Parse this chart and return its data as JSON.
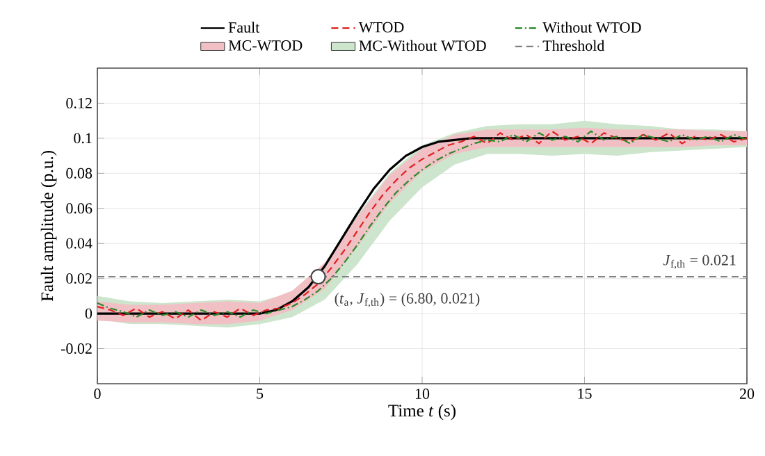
{
  "chart_data": {
    "type": "line",
    "xlabel": "Time *t* (s)",
    "ylabel": "Fault amplitude (p.u.)",
    "xlim": [
      0,
      20
    ],
    "ylim": [
      -0.04,
      0.14
    ],
    "xticks": [
      0,
      5,
      10,
      15,
      20
    ],
    "yticks": [
      -0.02,
      0,
      0.02,
      0.04,
      0.06,
      0.08,
      0.1,
      0.12
    ],
    "grid": true,
    "legend": "top",
    "series": [
      {
        "name": "Fault",
        "color": "#000000",
        "line_style": "solid",
        "x": [
          0,
          0.5,
          1,
          1.5,
          2,
          2.5,
          3,
          3.5,
          4,
          4.5,
          5,
          5.5,
          6,
          6.5,
          7,
          7.5,
          8,
          8.5,
          9,
          9.5,
          10,
          10.5,
          11,
          11.5,
          12,
          12.5,
          13,
          14,
          15,
          16,
          17,
          18,
          19,
          20
        ],
        "values": [
          0,
          0,
          0,
          0,
          0,
          0,
          0,
          0,
          0,
          0,
          0,
          0.002,
          0.007,
          0.015,
          0.027,
          0.042,
          0.057,
          0.071,
          0.082,
          0.09,
          0.095,
          0.098,
          0.099,
          0.1,
          0.1,
          0.1,
          0.1,
          0.1,
          0.1,
          0.1,
          0.1,
          0.1,
          0.1,
          0.1
        ]
      },
      {
        "name": "WTOD",
        "color": "#e02020",
        "line_style": "dashed",
        "x": [
          0,
          0.4,
          0.8,
          1.2,
          1.6,
          2,
          2.4,
          2.8,
          3.2,
          3.6,
          4,
          4.4,
          4.8,
          5.2,
          5.6,
          6,
          6.4,
          6.8,
          7.2,
          7.6,
          8,
          8.4,
          8.8,
          9.2,
          9.6,
          10,
          10.4,
          10.8,
          11.2,
          11.6,
          12,
          12.4,
          12.8,
          13.2,
          13.6,
          14,
          14.4,
          14.8,
          15.2,
          15.6,
          16,
          16.4,
          16.8,
          17.2,
          17.6,
          18,
          18.4,
          18.8,
          19.2,
          19.6,
          20
        ],
        "values": [
          0.004,
          0.002,
          -0.001,
          0.003,
          -0.002,
          0.001,
          -0.003,
          0.002,
          -0.004,
          0.001,
          -0.002,
          0.003,
          -0.001,
          0.002,
          0.003,
          0.006,
          0.011,
          0.017,
          0.026,
          0.036,
          0.047,
          0.058,
          0.068,
          0.076,
          0.083,
          0.088,
          0.092,
          0.096,
          0.098,
          0.101,
          0.097,
          0.103,
          0.099,
          0.102,
          0.097,
          0.104,
          0.099,
          0.101,
          0.097,
          0.103,
          0.1,
          0.098,
          0.102,
          0.099,
          0.103,
          0.097,
          0.101,
          0.099,
          0.102,
          0.098,
          0.1
        ]
      },
      {
        "name": "Without WTOD",
        "color": "#2a8a2a",
        "line_style": "dashdot",
        "x": [
          0,
          0.4,
          0.8,
          1.2,
          1.6,
          2,
          2.4,
          2.8,
          3.2,
          3.6,
          4,
          4.4,
          4.8,
          5.2,
          5.6,
          6,
          6.4,
          6.8,
          7.2,
          7.6,
          8,
          8.4,
          8.8,
          9.2,
          9.6,
          10,
          10.4,
          10.8,
          11.2,
          11.6,
          12,
          12.4,
          12.8,
          13.2,
          13.6,
          14,
          14.4,
          14.8,
          15.2,
          15.6,
          16,
          16.4,
          16.8,
          17.2,
          17.6,
          18,
          18.4,
          18.8,
          19.2,
          19.6,
          20
        ],
        "values": [
          0.006,
          0.003,
          0.001,
          -0.002,
          0.002,
          -0.001,
          0.001,
          -0.002,
          0.002,
          -0.001,
          0.001,
          -0.002,
          0.002,
          0,
          0.002,
          0.004,
          0.008,
          0.013,
          0.02,
          0.029,
          0.039,
          0.05,
          0.06,
          0.069,
          0.076,
          0.082,
          0.087,
          0.091,
          0.094,
          0.097,
          0.099,
          0.098,
          0.102,
          0.098,
          0.103,
          0.099,
          0.101,
          0.098,
          0.104,
          0.099,
          0.101,
          0.097,
          0.102,
          0.1,
          0.098,
          0.102,
          0.099,
          0.101,
          0.098,
          0.102,
          0.099
        ]
      },
      {
        "name": "MC-WTOD",
        "color": "#f0c0c4",
        "values": [
          null,
          null,
          null,
          null,
          null,
          null,
          null,
          null,
          null,
          null,
          null,
          null,
          null,
          null,
          null,
          null,
          null,
          null,
          null,
          null,
          null
        ],
        "x": [
          0,
          1,
          2,
          3,
          4,
          5,
          6,
          7,
          8,
          9,
          10,
          11,
          12,
          13,
          14,
          15,
          16,
          17,
          18,
          19,
          20
        ],
        "lower": [
          -0.004,
          -0.005,
          -0.005,
          -0.006,
          -0.006,
          -0.004,
          0.002,
          0.014,
          0.038,
          0.063,
          0.081,
          0.091,
          0.095,
          0.095,
          0.095,
          0.095,
          0.095,
          0.095,
          0.095,
          0.096,
          0.096
        ],
        "upper": [
          0.007,
          0.005,
          0.005,
          0.006,
          0.007,
          0.006,
          0.013,
          0.029,
          0.055,
          0.079,
          0.094,
          0.102,
          0.105,
          0.105,
          0.105,
          0.106,
          0.105,
          0.105,
          0.105,
          0.104,
          0.104
        ]
      },
      {
        "name": "MC-Without WTOD",
        "color": "#cde5cd",
        "values": [
          null,
          null,
          null,
          null,
          null,
          null,
          null,
          null,
          null,
          null,
          null,
          null,
          null,
          null,
          null,
          null,
          null,
          null,
          null,
          null,
          null
        ],
        "x": [
          0,
          1,
          2,
          3,
          4,
          5,
          6,
          7,
          8,
          9,
          10,
          11,
          12,
          13,
          14,
          15,
          16,
          17,
          18,
          19,
          20
        ],
        "lower": [
          -0.003,
          -0.006,
          -0.006,
          -0.007,
          -0.008,
          -0.006,
          -0.002,
          0.008,
          0.028,
          0.053,
          0.072,
          0.085,
          0.091,
          0.091,
          0.09,
          0.091,
          0.09,
          0.092,
          0.093,
          0.094,
          0.095
        ],
        "upper": [
          0.01,
          0.007,
          0.006,
          0.007,
          0.008,
          0.007,
          0.012,
          0.028,
          0.056,
          0.08,
          0.096,
          0.103,
          0.107,
          0.108,
          0.108,
          0.11,
          0.108,
          0.107,
          0.105,
          0.105,
          0.104
        ]
      },
      {
        "name": "Threshold",
        "color": "#808080",
        "line_style": "dashed",
        "x": [
          0,
          20
        ],
        "values": [
          0.021,
          0.021
        ]
      },
      {
        "type": "scatter",
        "color": "#404040",
        "marker": "circle",
        "x": [
          6.8
        ],
        "values": [
          0.021
        ]
      }
    ],
    "annotations": [
      {
        "text": "*J*$_{f,th}$ = 0.021",
        "x": 20,
        "y": 0.021
      },
      {
        "text": "(*t*$_{a}$, *J*$_{f,th}$) = (6.80, 0.021)",
        "x": 6.8,
        "y": 0.021
      }
    ]
  }
}
